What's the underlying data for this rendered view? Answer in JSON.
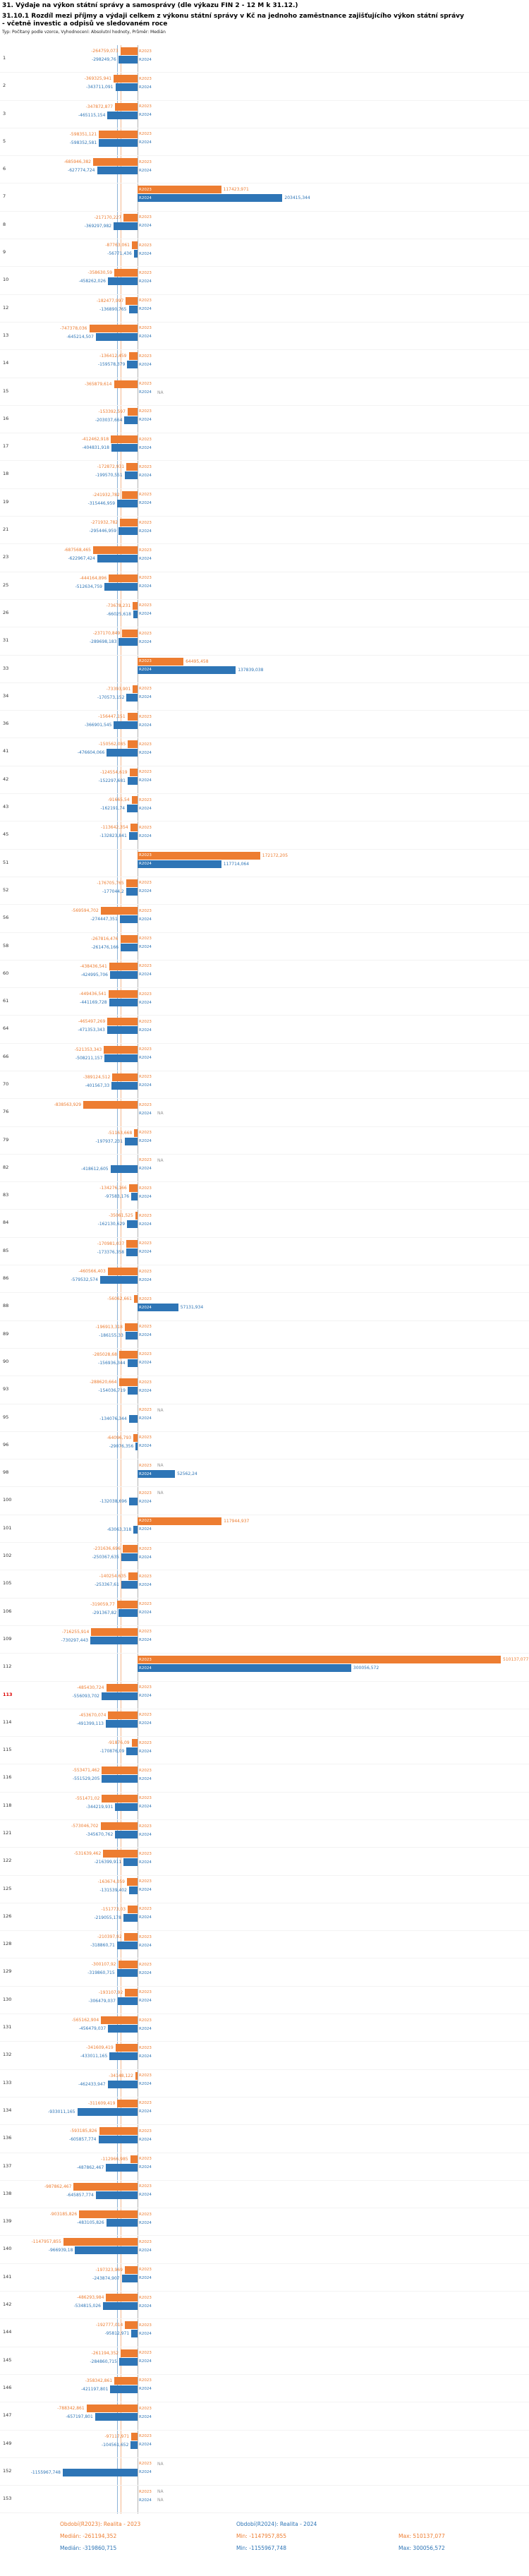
{
  "header": {
    "title": "31. Výdaje na výkon státní správy a samosprávy (dle výkazu FIN 2 - 12 M k 31.12.)",
    "subtitle": "31.10.1 Rozdíl mezi příjmy a výdaji celkem z výkonu státní správy v Kč na jednoho zaměstnance zajišťujícího výkon státní správy - včetně investic a odpisů ve sledovaném roce",
    "meta": "Typ: Počítaný podle vzorce, Vyhodnocení: Absolutní hodnoty, Průměr: Medián"
  },
  "chart_data": {
    "type": "bar",
    "orientation": "horizontal",
    "series": [
      {
        "name": "R2023",
        "color": "#ED7D31"
      },
      {
        "name": "R2024",
        "color": "#2E75B6"
      }
    ],
    "axis": {
      "min": -1200000,
      "max": 550000,
      "zero_line": true
    },
    "medians": {
      "R2023": "-261194,352",
      "R2024": "-319860,715"
    },
    "highlight_row": "113",
    "na_text": "NA",
    "rows": [
      {
        "n": "1",
        "R2023": "-264759,073",
        "R2024": "-298249,76"
      },
      {
        "n": "2",
        "R2023": "-369325,941",
        "R2024": "-343711,091"
      },
      {
        "n": "3",
        "R2023": "-347872,877",
        "R2024": "-465115,154"
      },
      {
        "n": "5",
        "R2023": "-598351,121",
        "R2024": "-598352,581"
      },
      {
        "n": "6",
        "R2023": "-685946,382",
        "R2024": "-627774,724"
      },
      {
        "n": "7",
        "R2023": "117423,971",
        "R2024": "203415,344"
      },
      {
        "n": "8",
        "R2023": "-217170,227",
        "R2024": "-369297,982"
      },
      {
        "n": "9",
        "R2023": "-87763,061",
        "R2024": "-56771,436"
      },
      {
        "n": "10",
        "R2023": "-358630,59",
        "R2024": "-458262,026"
      },
      {
        "n": "12",
        "R2023": "-182477,997",
        "R2024": "-136890,765"
      },
      {
        "n": "13",
        "R2023": "-747378,036",
        "R2024": "-645214,507"
      },
      {
        "n": "14",
        "R2023": "-136412,459",
        "R2024": "-159578,379"
      },
      {
        "n": "15",
        "R2023": "-365879,614",
        "R2024": "NA"
      },
      {
        "n": "16",
        "R2023": "-153392,597",
        "R2024": "-203037,664"
      },
      {
        "n": "17",
        "R2023": "-412462,918",
        "R2024": "-404831,918"
      },
      {
        "n": "18",
        "R2023": "-172872,931",
        "R2024": "-199570,551"
      },
      {
        "n": "19",
        "R2023": "-241932,782",
        "R2024": "-315446,959"
      },
      {
        "n": "21",
        "R2023": "-271932,782",
        "R2024": "-295446,959"
      },
      {
        "n": "23",
        "R2023": "-687568,465",
        "R2024": "-622967,424"
      },
      {
        "n": "25",
        "R2023": "-444164,896",
        "R2024": "-512634,759"
      },
      {
        "n": "26",
        "R2023": "-73678,231",
        "R2024": "-66025,618"
      },
      {
        "n": "31",
        "R2023": "-237170,849",
        "R2024": "-289698,183"
      },
      {
        "n": "33",
        "R2023": "64495,458",
        "R2024": "137839,038"
      },
      {
        "n": "34",
        "R2023": "-73393,901",
        "R2024": "-170573,152"
      },
      {
        "n": "36",
        "R2023": "-156447,151",
        "R2024": "-366901,545"
      },
      {
        "n": "41",
        "R2023": "-150562,085",
        "R2024": "-476604,066"
      },
      {
        "n": "42",
        "R2023": "-124554,619",
        "R2024": "-152297,681"
      },
      {
        "n": "43",
        "R2023": "-91665,54",
        "R2024": "-162191,74"
      },
      {
        "n": "45",
        "R2023": "-113642,354",
        "R2024": "-132823,841"
      },
      {
        "n": "51",
        "R2023": "172172,205",
        "R2024": "117714,064"
      },
      {
        "n": "52",
        "R2023": "-176705,765",
        "R2024": "-177044,2"
      },
      {
        "n": "56",
        "R2023": "-569594,702",
        "R2024": "-274447,351"
      },
      {
        "n": "58",
        "R2023": "-267816,476",
        "R2024": "-261476,166"
      },
      {
        "n": "60",
        "R2023": "-438436,541",
        "R2024": "-424995,706"
      },
      {
        "n": "61",
        "R2023": "-449436,541",
        "R2024": "-441169,728"
      },
      {
        "n": "64",
        "R2023": "-465497,269",
        "R2024": "-471353,343"
      },
      {
        "n": "66",
        "R2023": "-521353,343",
        "R2024": "-508211,157"
      },
      {
        "n": "70",
        "R2023": "-389124,512",
        "R2024": "-401567,33"
      },
      {
        "n": "76",
        "R2023": "-838563,929",
        "R2024": "NA"
      },
      {
        "n": "79",
        "R2023": "-51163,668",
        "R2024": "-197937,231"
      },
      {
        "n": "82",
        "R2023": "NA",
        "R2024": "-418612,605"
      },
      {
        "n": "83",
        "R2023": "-134276,166",
        "R2024": "-97583,176"
      },
      {
        "n": "84",
        "R2023": "-35061,525",
        "R2024": "-162130,629"
      },
      {
        "n": "85",
        "R2023": "-170981,037",
        "R2024": "-173376,358"
      },
      {
        "n": "86",
        "R2023": "-460566,403",
        "R2024": "-579532,574"
      },
      {
        "n": "88",
        "R2023": "-56062,661",
        "R2024": "57131,934"
      },
      {
        "n": "89",
        "R2023": "-196913,318",
        "R2024": "-186155,33"
      },
      {
        "n": "90",
        "R2023": "-285028,68",
        "R2024": "-156936,344"
      },
      {
        "n": "93",
        "R2023": "-288620,664",
        "R2024": "-154036,719"
      },
      {
        "n": "95",
        "R2023": "NA",
        "R2024": "-134076,344"
      },
      {
        "n": "96",
        "R2023": "-64096,793",
        "R2024": "-29076,356"
      },
      {
        "n": "98",
        "R2023": "NA",
        "R2024": "52562,24"
      },
      {
        "n": "100",
        "R2023": "NA",
        "R2024": "-132038,696"
      },
      {
        "n": "101",
        "R2023": "117944,937",
        "R2024": "-63063,318"
      },
      {
        "n": "102",
        "R2023": "-231636,696",
        "R2024": "-250367,635"
      },
      {
        "n": "105",
        "R2023": "-140254,635",
        "R2024": "-253367,61"
      },
      {
        "n": "106",
        "R2023": "-319059,77",
        "R2024": "-291367,82"
      },
      {
        "n": "109",
        "R2023": "-716255,914",
        "R2024": "-730297,443"
      },
      {
        "n": "112",
        "R2023": "510137,077",
        "R2024": "300056,572"
      },
      {
        "n": "113",
        "R2023": "-485430,724",
        "R2024": "-556093,702"
      },
      {
        "n": "114",
        "R2023": "-453670,074",
        "R2024": "-491399,113"
      },
      {
        "n": "115",
        "R2023": "-91876,09",
        "R2024": "-170876,09"
      },
      {
        "n": "116",
        "R2023": "-553471,462",
        "R2024": "-551529,205"
      },
      {
        "n": "118",
        "R2023": "-551471,02",
        "R2024": "-344219,931"
      },
      {
        "n": "121",
        "R2023": "-573046,702",
        "R2024": "-345670,762"
      },
      {
        "n": "122",
        "R2023": "-531639,462",
        "R2024": "-216399,911"
      },
      {
        "n": "125",
        "R2023": "-163674,059",
        "R2024": "-131539,402"
      },
      {
        "n": "126",
        "R2023": "-151773,03",
        "R2024": "-219055,178"
      },
      {
        "n": "128",
        "R2023": "-210397,92",
        "R2024": "-318860,71"
      },
      {
        "n": "129",
        "R2023": "-300107,92",
        "R2024": "-319860,715"
      },
      {
        "n": "130",
        "R2023": "-193107,92",
        "R2024": "-306479,037"
      },
      {
        "n": "131",
        "R2023": "-565162,904",
        "R2024": "-456479,037"
      },
      {
        "n": "132",
        "R2023": "-341609,419",
        "R2024": "-433011,165"
      },
      {
        "n": "133",
        "R2023": "-34148,122",
        "R2024": "-462433,947"
      },
      {
        "n": "134",
        "R2023": "-311609,419",
        "R2024": "-933011,165"
      },
      {
        "n": "136",
        "R2023": "-593185,826",
        "R2024": "-605857,774"
      },
      {
        "n": "137",
        "R2023": "-112966,985",
        "R2024": "-487862,467"
      },
      {
        "n": "138",
        "R2023": "-987862,467",
        "R2024": "-645857,774"
      },
      {
        "n": "139",
        "R2023": "-903185,826",
        "R2024": "-483105,826"
      },
      {
        "n": "140",
        "R2023": "-1147957,855",
        "R2024": "-966939,18"
      },
      {
        "n": "141",
        "R2023": "-197323,969",
        "R2024": "-243874,907"
      },
      {
        "n": "142",
        "R2023": "-486293,984",
        "R2024": "-534815,026"
      },
      {
        "n": "144",
        "R2023": "-192777,014",
        "R2024": "-95812,971"
      },
      {
        "n": "145",
        "R2023": "-261194,352",
        "R2024": "-284860,715"
      },
      {
        "n": "146",
        "R2023": "-358342,861",
        "R2024": "-421197,801"
      },
      {
        "n": "147",
        "R2023": "-788342,861",
        "R2024": "-657197,801"
      },
      {
        "n": "149",
        "R2023": "-97117,971",
        "R2024": "-104561,652"
      },
      {
        "n": "152",
        "R2023": "NA",
        "R2024": "-1155967,748"
      },
      {
        "n": "153",
        "R2023": "NA",
        "R2024": "NA"
      }
    ]
  },
  "footer": {
    "period_r2023": "Období(R2023): Realita - 2023",
    "period_r2024": "Období(R2024): Realita - 2024",
    "stats_r2023": {
      "median": "Medián: -261194,352",
      "min": "Min: -1147957,855",
      "max": "Max: 510137,077"
    },
    "stats_r2024": {
      "median": "Medián: -319860,715",
      "min": "Min: -1155967,748",
      "max": "Max: 300056,572"
    }
  }
}
